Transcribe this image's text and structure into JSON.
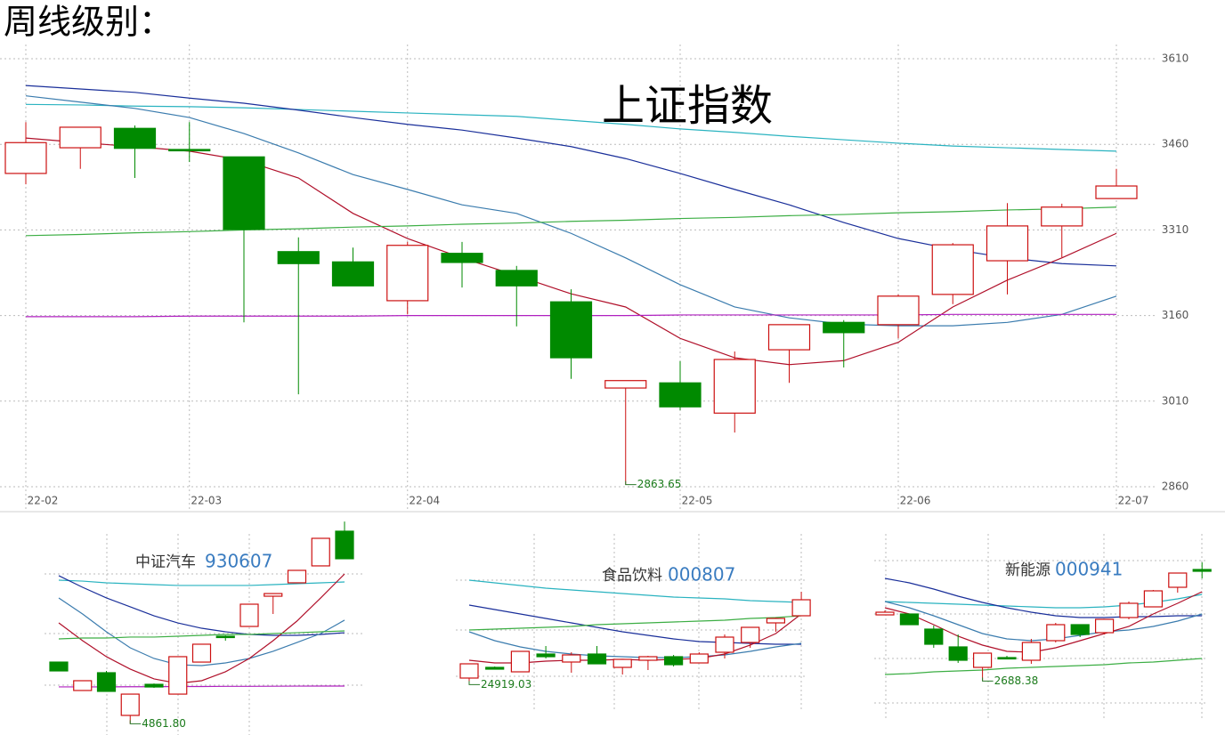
{
  "page_title": "周线级别：",
  "chart_data": [
    {
      "type": "candlestick",
      "title": "上证指数",
      "up_color": "#cc1010",
      "down_color": "#008a00",
      "categories": [
        "22-02",
        null,
        null,
        "22-03",
        null,
        null,
        null,
        "22-04",
        null,
        null,
        null,
        null,
        "22-05",
        null,
        null,
        null,
        "22-06",
        null,
        null,
        null,
        "22-07"
      ],
      "ylim": [
        2860,
        3610
      ],
      "yticks": [
        2860,
        3010,
        3160,
        3310,
        3460,
        3610
      ],
      "grid": true,
      "open": [
        3409,
        3454,
        3488,
        3451,
        3438,
        3272,
        3254,
        3186,
        3269,
        3239,
        3184,
        3033,
        3042,
        2989,
        3100,
        3148,
        3144,
        3197,
        3256,
        3317,
        3365
      ],
      "high": [
        3499,
        3490,
        3493,
        3499,
        3438,
        3297,
        3279,
        3289,
        3289,
        3247,
        3206,
        3046,
        3080,
        3097,
        3144,
        3152,
        3197,
        3287,
        3357,
        3356,
        3417
      ],
      "low": [
        3390,
        3417,
        3401,
        3429,
        3148,
        3022,
        3212,
        3162,
        3209,
        3141,
        3049,
        2863.65,
        2994,
        2955,
        3042,
        3069,
        3120,
        3180,
        3197,
        3262,
        3365
      ],
      "close": [
        3463,
        3490,
        3453,
        3449,
        3311,
        3251,
        3212,
        3283,
        3253,
        3212,
        3086,
        3046,
        3000,
        3083,
        3144,
        3130,
        3194,
        3284,
        3317,
        3350,
        3387
      ],
      "low_value_labels": [
        null,
        null,
        null,
        null,
        null,
        null,
        null,
        null,
        null,
        null,
        null,
        "2863.65",
        null,
        null,
        null,
        null,
        null,
        null,
        null,
        null,
        null
      ],
      "lines": [
        {
          "color": "#2ab3c0",
          "values": [
            3530,
            3529,
            3527,
            3526,
            3524,
            3521,
            3518,
            3515,
            3512,
            3509,
            3502,
            3495,
            3487,
            3481,
            3474,
            3468,
            3462,
            3457,
            3454,
            3451,
            3448
          ]
        },
        {
          "color": "#1a2f9a",
          "values": [
            3563,
            3557,
            3551,
            3541,
            3532,
            3520,
            3507,
            3495,
            3485,
            3471,
            3456,
            3435,
            3409,
            3381,
            3354,
            3323,
            3295,
            3276,
            3261,
            3251,
            3247
          ]
        },
        {
          "color": "#3b7cae",
          "values": [
            3545,
            3534,
            3523,
            3507,
            3479,
            3445,
            3407,
            3381,
            3354,
            3339,
            3304,
            3261,
            3214,
            3175,
            3156,
            3145,
            3142,
            3142,
            3148,
            3162,
            3194
          ]
        },
        {
          "color": "#b0102a",
          "values": [
            3471,
            3463,
            3456,
            3448,
            3432,
            3401,
            3339,
            3295,
            3261,
            3230,
            3198,
            3175,
            3120,
            3086,
            3074,
            3081,
            3113,
            3175,
            3222,
            3261,
            3304
          ]
        },
        {
          "color": "#3cae44",
          "values": [
            3300,
            3302,
            3305,
            3307,
            3310,
            3312,
            3315,
            3317,
            3320,
            3322,
            3325,
            3327,
            3330,
            3332,
            3335,
            3337,
            3340,
            3342,
            3345,
            3347,
            3350
          ]
        },
        {
          "color": "#b020c0",
          "values": [
            3158,
            3158,
            3158,
            3159,
            3159,
            3159,
            3159,
            3160,
            3160,
            3160,
            3160,
            3160,
            3161,
            3161,
            3161,
            3161,
            3161,
            3162,
            3162,
            3162,
            3162
          ]
        }
      ]
    },
    {
      "type": "candlestick",
      "title": "中证汽车",
      "subtitle": "930607",
      "up_color": "#cc1010",
      "down_color": "#008a00",
      "ylim": [
        4800,
        7000
      ],
      "open": [
        5511,
        5212,
        5399,
        4950,
        5277,
        5174,
        5511,
        5783,
        5886,
        6204,
        6345,
        6523,
        6888
      ],
      "high": [
        5511,
        5315,
        5418,
        5174,
        5286,
        5568,
        5699,
        5792,
        6120,
        6232,
        6476,
        6813,
        6990
      ],
      "low": [
        5418,
        5212,
        5203,
        4861.8,
        5240,
        5174,
        5511,
        5736,
        5886,
        6017,
        6345,
        6523,
        6598
      ],
      "close": [
        5418,
        5315,
        5203,
        5174,
        5249,
        5568,
        5699,
        5779,
        6120,
        6232,
        6476,
        6813,
        6598
      ],
      "low_value_labels": [
        null,
        null,
        null,
        "4861.80",
        null,
        null,
        null,
        null,
        null,
        null,
        null,
        null,
        null
      ],
      "lines": [
        {
          "color": "#2ab3c0",
          "values": [
            6373,
            6363,
            6345,
            6335,
            6326,
            6317,
            6317,
            6317,
            6317,
            6326,
            6335,
            6345,
            6354
          ]
        },
        {
          "color": "#1a2f9a",
          "values": [
            6420,
            6298,
            6186,
            6092,
            5998,
            5923,
            5867,
            5830,
            5802,
            5792,
            5792,
            5802,
            5820
          ]
        },
        {
          "color": "#3b7cae",
          "values": [
            6186,
            6017,
            5830,
            5661,
            5549,
            5483,
            5474,
            5502,
            5549,
            5624,
            5717,
            5811,
            5952
          ]
        },
        {
          "color": "#b0102a",
          "values": [
            5923,
            5736,
            5568,
            5437,
            5334,
            5287,
            5315,
            5409,
            5549,
            5736,
            5942,
            6186,
            6438
          ]
        },
        {
          "color": "#3cae44",
          "values": [
            5755,
            5764,
            5764,
            5774,
            5774,
            5783,
            5792,
            5802,
            5802,
            5811,
            5820,
            5830,
            5839
          ]
        },
        {
          "color": "#b020c0",
          "values": [
            5250,
            5250,
            5250,
            5252,
            5252,
            5254,
            5254,
            5256,
            5256,
            5257,
            5258,
            5259,
            5259
          ]
        }
      ]
    },
    {
      "type": "candlestick",
      "title": "食品饮料",
      "subtitle": "000807",
      "up_color": "#cc1010",
      "down_color": "#008a00",
      "ylim": [
        24000,
        30000
      ],
      "open": [
        25140,
        25500,
        25350,
        25950,
        25680,
        25950,
        25500,
        25740,
        25860,
        25650,
        26010,
        26340,
        27000,
        27240
      ],
      "high": [
        25620,
        25530,
        26040,
        26220,
        26010,
        26220,
        25770,
        25890,
        25920,
        26010,
        26610,
        26850,
        27180,
        28050
      ],
      "low": [
        24919.03,
        25440,
        25350,
        25800,
        25320,
        25620,
        25260,
        25410,
        25530,
        25650,
        25800,
        26160,
        26700,
        27240
      ],
      "close": [
        25620,
        25440,
        26040,
        25860,
        25920,
        25620,
        25770,
        25860,
        25590,
        25950,
        26520,
        26850,
        27150,
        27780
      ],
      "low_value_labels": [
        "24919.03",
        null,
        null,
        null,
        null,
        null,
        null,
        null,
        null,
        null,
        null,
        null,
        null,
        null
      ],
      "lines": [
        {
          "color": "#2ab3c0",
          "values": [
            28440,
            28350,
            28260,
            28170,
            28110,
            28050,
            27990,
            27930,
            27870,
            27840,
            27810,
            27750,
            27720,
            27690
          ]
        },
        {
          "color": "#1a2f9a",
          "values": [
            27600,
            27450,
            27300,
            27150,
            27000,
            26850,
            26700,
            26580,
            26460,
            26370,
            26340,
            26310,
            26280,
            26280
          ]
        },
        {
          "color": "#3b7cae",
          "values": [
            26700,
            26400,
            26190,
            26040,
            25950,
            25890,
            25860,
            25830,
            25830,
            25860,
            25920,
            26040,
            26190,
            26310
          ]
        },
        {
          "color": "#b0102a",
          "values": [
            25740,
            25650,
            25650,
            25710,
            25740,
            25740,
            25770,
            25740,
            25770,
            25800,
            25950,
            26250,
            26640,
            27300
          ]
        },
        {
          "color": "#3cae44",
          "values": [
            26760,
            26790,
            26820,
            26850,
            26880,
            26940,
            26970,
            27000,
            27030,
            27060,
            27090,
            27150,
            27180,
            27240
          ]
        }
      ]
    },
    {
      "type": "candlestick",
      "title": "新能源",
      "subtitle": "000941",
      "up_color": "#cc1010",
      "down_color": "#008a00",
      "ylim": [
        2530,
        3350
      ],
      "open": [
        2986,
        2990,
        2922,
        2842,
        2750,
        2794,
        2782,
        2870,
        2942,
        2906,
        2974,
        3022,
        3110,
        3190
      ],
      "high": [
        3006,
        2990,
        2938,
        2898,
        2814,
        2802,
        2878,
        2950,
        2942,
        2966,
        3046,
        3098,
        3174,
        3222
      ],
      "low": [
        2986,
        2942,
        2838,
        2770,
        2688.38,
        2786,
        2766,
        2862,
        2886,
        2898,
        2966,
        3022,
        3086,
        3150
      ],
      "close": [
        2998,
        2942,
        2854,
        2782,
        2814,
        2790,
        2862,
        2942,
        2898,
        2966,
        3038,
        3094,
        3174,
        3182
      ],
      "low_value_labels": [
        null,
        null,
        null,
        null,
        "2688.38",
        null,
        null,
        null,
        null,
        null,
        null,
        null,
        null,
        null
      ],
      "lines": [
        {
          "color": "#2ab3c0",
          "values": [
            3046,
            3042,
            3038,
            3034,
            3030,
            3026,
            3022,
            3018,
            3018,
            3022,
            3030,
            3042,
            3058,
            3078
          ]
        },
        {
          "color": "#1a2f9a",
          "values": [
            3150,
            3130,
            3102,
            3070,
            3042,
            3018,
            2998,
            2982,
            2974,
            2974,
            2978,
            2978,
            2982,
            2982
          ]
        },
        {
          "color": "#3b7cae",
          "values": [
            3046,
            3018,
            2982,
            2942,
            2902,
            2878,
            2870,
            2878,
            2894,
            2910,
            2918,
            2934,
            2958,
            2990
          ]
        },
        {
          "color": "#b0102a",
          "values": [
            3018,
            2990,
            2942,
            2890,
            2850,
            2822,
            2818,
            2838,
            2870,
            2902,
            2934,
            2990,
            3038,
            3090
          ]
        },
        {
          "color": "#3cae44",
          "values": [
            2718,
            2722,
            2730,
            2734,
            2738,
            2746,
            2750,
            2754,
            2758,
            2762,
            2770,
            2774,
            2782,
            2790
          ]
        }
      ]
    }
  ]
}
